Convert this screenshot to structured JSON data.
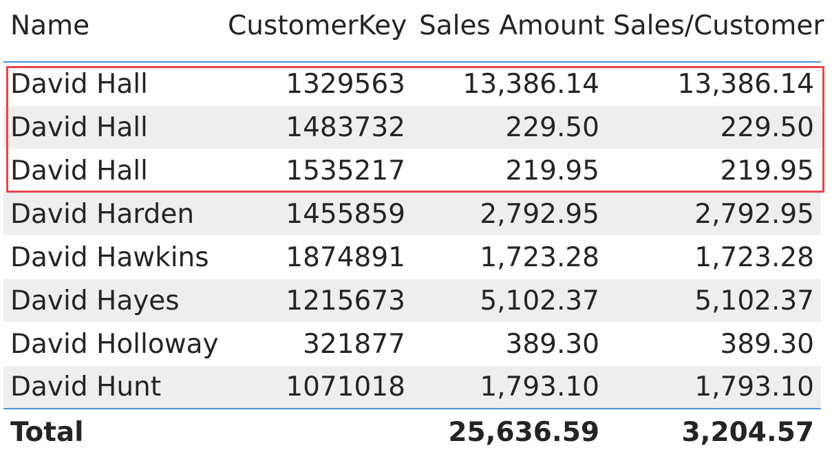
{
  "table": {
    "columns": [
      "Name",
      "CustomerKey",
      "Sales Amount",
      "Sales/Customer"
    ],
    "rows": [
      {
        "name": "David Hall",
        "customer_key": "1329563",
        "sales_amount": "13,386.14",
        "sales_per_customer": "13,386.14"
      },
      {
        "name": "David Hall",
        "customer_key": "1483732",
        "sales_amount": "229.50",
        "sales_per_customer": "229.50"
      },
      {
        "name": "David Hall",
        "customer_key": "1535217",
        "sales_amount": "219.95",
        "sales_per_customer": "219.95"
      },
      {
        "name": "David Harden",
        "customer_key": "1455859",
        "sales_amount": "2,792.95",
        "sales_per_customer": "2,792.95"
      },
      {
        "name": "David Hawkins",
        "customer_key": "1874891",
        "sales_amount": "1,723.28",
        "sales_per_customer": "1,723.28"
      },
      {
        "name": "David Hayes",
        "customer_key": "1215673",
        "sales_amount": "5,102.37",
        "sales_per_customer": "5,102.37"
      },
      {
        "name": "David Holloway",
        "customer_key": "321877",
        "sales_amount": "389.30",
        "sales_per_customer": "389.30"
      },
      {
        "name": "David Hunt",
        "customer_key": "1071018",
        "sales_amount": "1,793.10",
        "sales_per_customer": "1,793.10"
      }
    ],
    "total": {
      "label": "Total",
      "customer_key": "",
      "sales_amount": "25,636.59",
      "sales_per_customer": "3,204.57"
    }
  },
  "highlight": {
    "color": "#e8434b",
    "covers_rows": [
      0,
      1,
      2
    ]
  },
  "colors": {
    "header_rule": "#4a90d9",
    "alt_row": "#eeeeee",
    "text": "#252423"
  }
}
